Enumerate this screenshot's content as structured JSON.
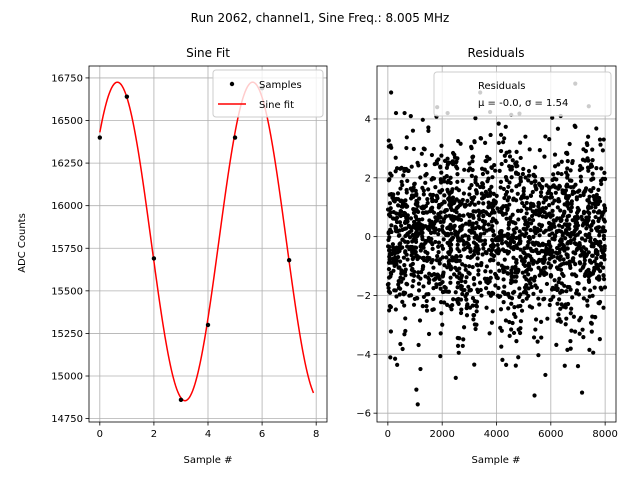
{
  "figure": {
    "suptitle": "Run 2062, channel1, Sine Freq.: 8.005 MHz"
  },
  "chart_data": [
    {
      "type": "line",
      "title": "Sine Fit",
      "xlabel": "Sample #",
      "ylabel": "ADC Counts",
      "xlim": [
        -0.4,
        8.4
      ],
      "ylim": [
        14730,
        16820
      ],
      "xticks": [
        "0",
        "2",
        "4",
        "6",
        "8"
      ],
      "yticks": [
        "14750",
        "15000",
        "15250",
        "15500",
        "15750",
        "16000",
        "16250",
        "16500",
        "16750"
      ],
      "grid": true,
      "legend_position": "upper-right",
      "legend": [
        "Samples",
        "Sine fit"
      ],
      "series": [
        {
          "name": "Samples",
          "style": "points",
          "color": "#000000",
          "x": [
            0,
            1,
            2,
            3,
            4,
            5,
            6,
            7
          ],
          "y": [
            16400,
            16640,
            15690,
            14860,
            15300,
            16400,
            16690,
            15680
          ]
        },
        {
          "name": "Sine fit",
          "style": "line",
          "color": "#ff0000",
          "model": {
            "offset": 15790,
            "amplitude": 935,
            "period": 5.0,
            "peak_x": 0.65,
            "x_start": 0,
            "x_end": 7.9
          }
        }
      ]
    },
    {
      "type": "scatter",
      "title": "Residuals",
      "xlabel": "Sample #",
      "ylabel": "",
      "xlim": [
        -400,
        8400
      ],
      "ylim": [
        -6.3,
        5.8
      ],
      "xticks": [
        "0",
        "2000",
        "4000",
        "6000",
        "8000"
      ],
      "yticks": [
        "−6",
        "−4",
        "−2",
        "0",
        "2",
        "4"
      ],
      "grid": true,
      "legend_position": "upper-right",
      "legend_title": "Residuals",
      "legend_stats": "μ = -0.0, σ = 1.54",
      "series": [
        {
          "name": "Residuals",
          "color": "#000000",
          "x_range": [
            0,
            7999
          ],
          "mean": 0.0,
          "std": 1.54,
          "count": 2000,
          "outliers": [
            {
              "x": 120,
              "y": 4.9
            },
            {
              "x": 1100,
              "y": -5.7
            },
            {
              "x": 1050,
              "y": -5.2
            },
            {
              "x": 1200,
              "y": -4.5
            },
            {
              "x": 2500,
              "y": -4.8
            },
            {
              "x": 5400,
              "y": -5.4
            },
            {
              "x": 5800,
              "y": -4.7
            },
            {
              "x": 7150,
              "y": -5.3
            },
            {
              "x": 7000,
              "y": -4.4
            },
            {
              "x": 6900,
              "y": 5.2
            },
            {
              "x": 7950,
              "y": 3.3
            },
            {
              "x": 3400,
              "y": 4.9
            },
            {
              "x": 2200,
              "y": 4.2
            },
            {
              "x": 4800,
              "y": -4.1
            },
            {
              "x": 300,
              "y": 4.2
            }
          ]
        }
      ]
    }
  ]
}
